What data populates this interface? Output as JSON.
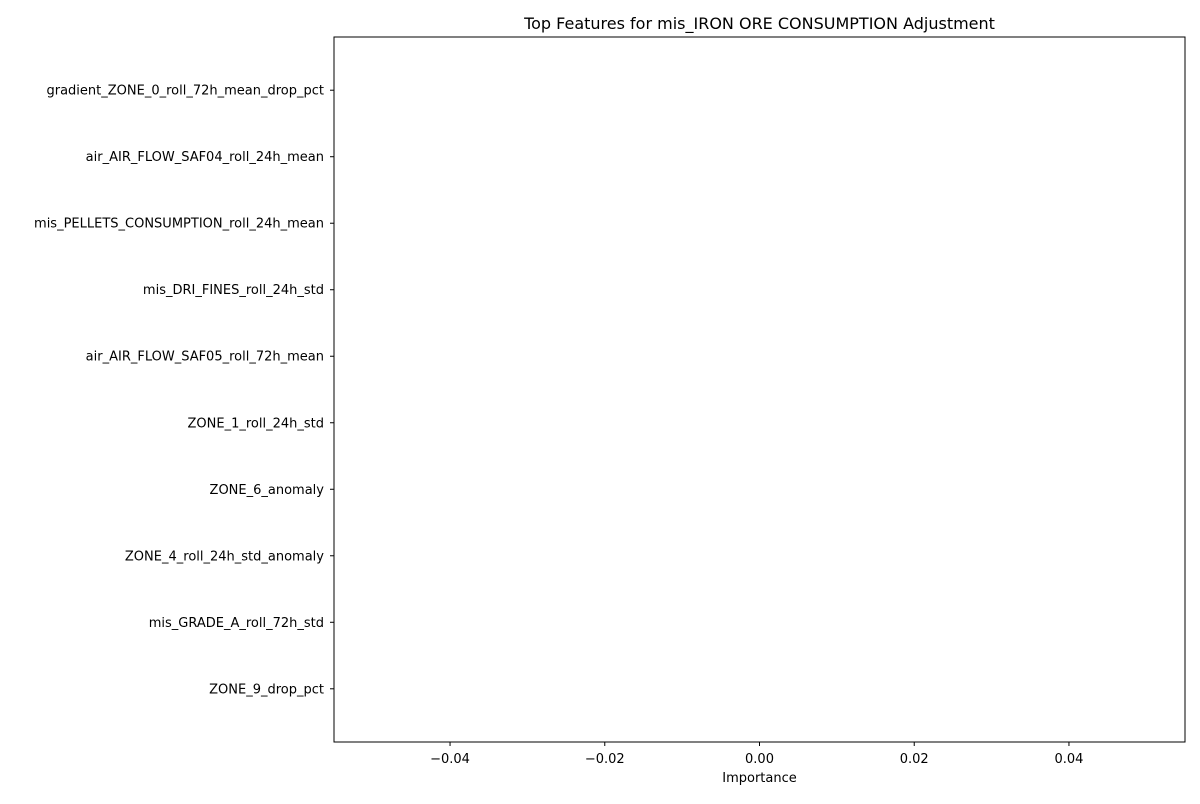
{
  "chart_data": {
    "type": "bar",
    "orientation": "horizontal",
    "title": "Top Features for mis_IRON ORE CONSUMPTION Adjustment",
    "xlabel": "Importance",
    "ylabel": "",
    "xlim": [
      -0.055,
      0.055
    ],
    "xticks": [
      -0.04,
      -0.02,
      0.0,
      0.02,
      0.04
    ],
    "xtick_labels": [
      "−0.04",
      "−0.02",
      "0.00",
      "0.02",
      "0.04"
    ],
    "categories": [
      "gradient_ZONE_0_roll_72h_mean_drop_pct",
      "air_AIR_FLOW_SAF04_roll_24h_mean",
      "mis_PELLETS_CONSUMPTION_roll_24h_mean",
      "mis_DRI_FINES_roll_24h_std",
      "air_AIR_FLOW_SAF05_roll_72h_mean",
      "ZONE_1_roll_24h_std",
      "ZONE_6_anomaly",
      "ZONE_4_roll_24h_std_anomaly",
      "mis_GRADE_A_roll_72h_std",
      "ZONE_9_drop_pct"
    ],
    "values": [
      0,
      0,
      0,
      0,
      0,
      0,
      0,
      0,
      0,
      0
    ],
    "bar_color": "#1f77b4",
    "grid": false,
    "legend": false
  }
}
